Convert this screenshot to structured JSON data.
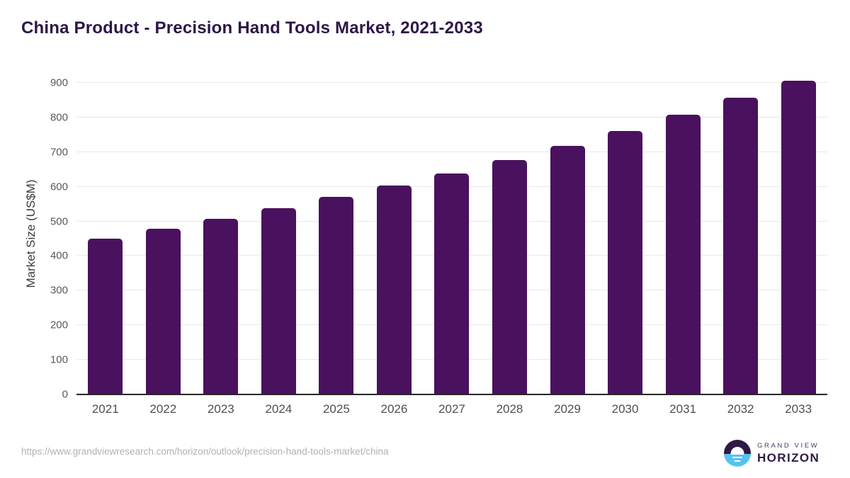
{
  "title": "China Product - Precision Hand Tools Market, 2021-2033",
  "chart_data": {
    "type": "bar",
    "categories": [
      "2021",
      "2022",
      "2023",
      "2024",
      "2025",
      "2026",
      "2027",
      "2028",
      "2029",
      "2030",
      "2031",
      "2032",
      "2033"
    ],
    "values": [
      450,
      478,
      507,
      538,
      570,
      604,
      639,
      677,
      717,
      761,
      808,
      857,
      907
    ],
    "title": "China Product - Precision Hand Tools Market, 2021-2033",
    "xlabel": "",
    "ylabel": "Market Size (US$M)",
    "ylim": [
      0,
      945
    ],
    "yticks": [
      0,
      100,
      200,
      300,
      400,
      500,
      600,
      700,
      800,
      900
    ],
    "bar_color": "#4a115e",
    "grid": true,
    "legend": "none"
  },
  "footer": {
    "source_url": "https://www.grandviewresearch.com/horizon/outlook/precision-hand-tools-market/china",
    "logo": {
      "line1": "GRAND VIEW",
      "line2": "HORIZON"
    }
  },
  "colors": {
    "title_text": "#2e1647",
    "bar": "#4a115e",
    "axis_text": "#595959",
    "gridline": "#e8e8e8",
    "axis_line": "#262626",
    "source_text": "#b1b1b1",
    "logo_blue": "#55c3ee",
    "logo_purple": "#2e1a47"
  }
}
